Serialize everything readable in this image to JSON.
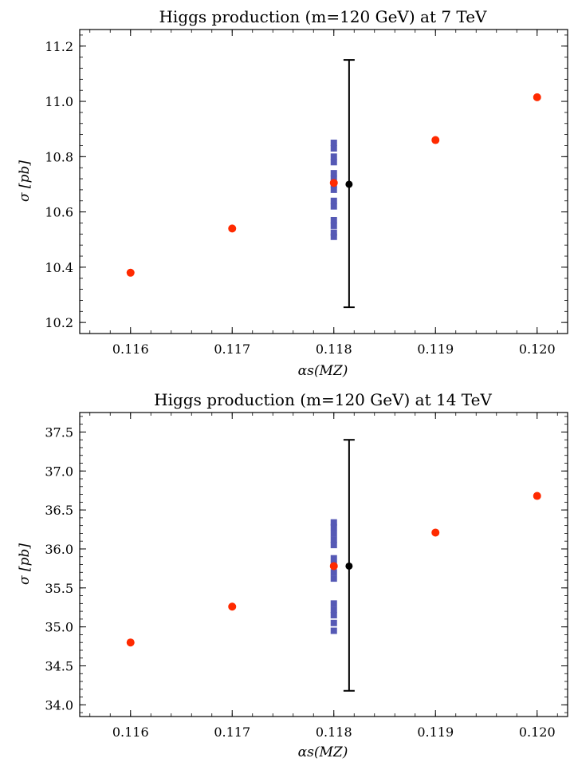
{
  "chart_data": [
    {
      "type": "scatter",
      "title": "Higgs production (m=120 GeV) at 7 TeV",
      "xlabel": "αs(MZ)",
      "ylabel": "σ [pb]",
      "xlim": [
        0.1155,
        0.1203
      ],
      "ylim": [
        10.16,
        11.26
      ],
      "xticks": [
        "0.116",
        "0.117",
        "0.118",
        "0.119",
        "0.120"
      ],
      "yticks": [
        "10.2",
        "10.4",
        "10.6",
        "10.8",
        "11.0",
        "11.2"
      ],
      "series": [
        {
          "color": "#ff2a00",
          "marker": "circle",
          "points": [
            {
              "x": 0.116,
              "y": 10.38
            },
            {
              "x": 0.117,
              "y": 10.54
            },
            {
              "x": 0.118,
              "y": 10.705
            },
            {
              "x": 0.119,
              "y": 10.86
            },
            {
              "x": 0.12,
              "y": 11.015
            }
          ]
        },
        {
          "color": "#5559b5",
          "marker": "square",
          "points": [
            {
              "x": 0.118,
              "y": 10.51
            },
            {
              "x": 0.118,
              "y": 10.525
            },
            {
              "x": 0.118,
              "y": 10.55
            },
            {
              "x": 0.118,
              "y": 10.57
            },
            {
              "x": 0.118,
              "y": 10.62
            },
            {
              "x": 0.118,
              "y": 10.64
            },
            {
              "x": 0.118,
              "y": 10.68
            },
            {
              "x": 0.118,
              "y": 10.7
            },
            {
              "x": 0.118,
              "y": 10.72
            },
            {
              "x": 0.118,
              "y": 10.74
            },
            {
              "x": 0.118,
              "y": 10.78
            },
            {
              "x": 0.118,
              "y": 10.8
            },
            {
              "x": 0.118,
              "y": 10.83
            },
            {
              "x": 0.118,
              "y": 10.85
            }
          ]
        }
      ],
      "errorbar": {
        "x": 0.11815,
        "y": 10.7,
        "ylow": 10.255,
        "yhigh": 11.15,
        "color": "#000000"
      }
    },
    {
      "type": "scatter",
      "title": "Higgs production (m=120 GeV) at 14 TeV",
      "xlabel": "αs(MZ)",
      "ylabel": "σ [pb]",
      "xlim": [
        0.1155,
        0.1203
      ],
      "ylim": [
        33.85,
        37.75
      ],
      "xticks": [
        "0.116",
        "0.117",
        "0.118",
        "0.119",
        "0.120"
      ],
      "yticks": [
        "34.0",
        "34.5",
        "35.0",
        "35.5",
        "36.0",
        "36.5",
        "37.0",
        "37.5"
      ],
      "series": [
        {
          "color": "#ff2a00",
          "marker": "circle",
          "points": [
            {
              "x": 0.116,
              "y": 34.8
            },
            {
              "x": 0.117,
              "y": 35.26
            },
            {
              "x": 0.118,
              "y": 35.78
            },
            {
              "x": 0.119,
              "y": 36.21
            },
            {
              "x": 0.12,
              "y": 36.68
            }
          ]
        },
        {
          "color": "#5559b5",
          "marker": "square",
          "points": [
            {
              "x": 0.118,
              "y": 34.95
            },
            {
              "x": 0.118,
              "y": 35.05
            },
            {
              "x": 0.118,
              "y": 35.15
            },
            {
              "x": 0.118,
              "y": 35.22
            },
            {
              "x": 0.118,
              "y": 35.3
            },
            {
              "x": 0.118,
              "y": 35.62
            },
            {
              "x": 0.118,
              "y": 35.7
            },
            {
              "x": 0.118,
              "y": 35.8
            },
            {
              "x": 0.118,
              "y": 35.88
            },
            {
              "x": 0.118,
              "y": 36.05
            },
            {
              "x": 0.118,
              "y": 36.12
            },
            {
              "x": 0.118,
              "y": 36.2
            },
            {
              "x": 0.118,
              "y": 36.28
            },
            {
              "x": 0.118,
              "y": 36.34
            }
          ]
        }
      ],
      "errorbar": {
        "x": 0.11815,
        "y": 35.78,
        "ylow": 34.18,
        "yhigh": 37.4,
        "color": "#000000"
      }
    }
  ]
}
